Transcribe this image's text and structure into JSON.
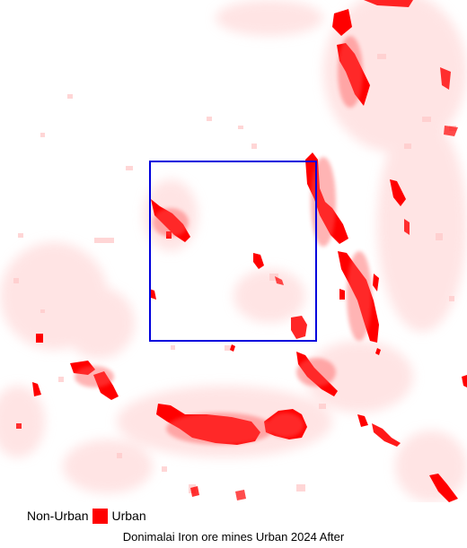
{
  "map": {
    "title": "Donimalai Iron ore mines Urban 2024 After",
    "legend": {
      "items": [
        {
          "label": "Non-Urban"
        },
        {
          "label": "Urban",
          "color": "#ff0000"
        }
      ]
    },
    "colors": {
      "urban": "#ff0000",
      "faint_urban": "#ffd5d5",
      "aoi_box": "#0000dd"
    },
    "aoi": {
      "shape": "rectangle",
      "outline": "blue"
    }
  }
}
